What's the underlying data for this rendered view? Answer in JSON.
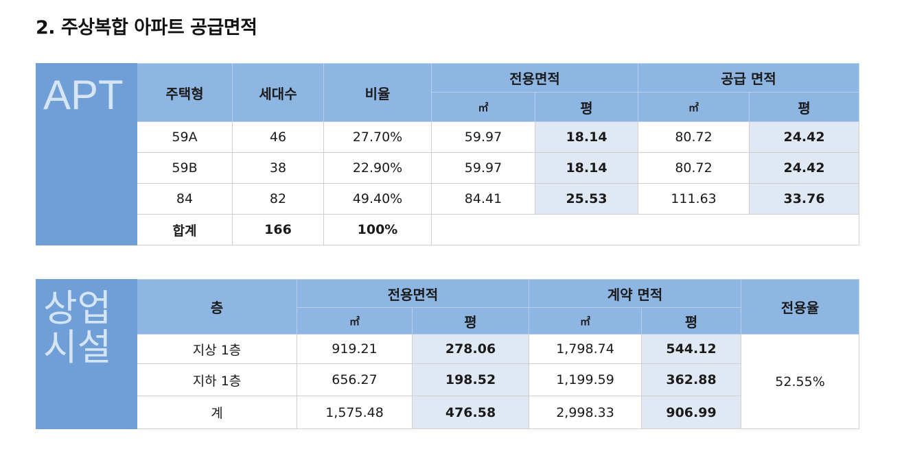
{
  "title": "2. 주상복합 아파트 공급면적",
  "apt": {
    "side_label": "APT",
    "headers": {
      "type": "주택형",
      "units": "세대수",
      "ratio": "비율",
      "exclusive": "전용면적",
      "supply": "공급 면적",
      "sqm": "㎡",
      "pyeong": "평"
    },
    "rows": [
      {
        "type": "59A",
        "units": "46",
        "ratio": "27.70%",
        "ex_sqm": "59.97",
        "ex_py": "18.14",
        "sup_sqm": "80.72",
        "sup_py": "24.42"
      },
      {
        "type": "59B",
        "units": "38",
        "ratio": "22.90%",
        "ex_sqm": "59.97",
        "ex_py": "18.14",
        "sup_sqm": "80.72",
        "sup_py": "24.42"
      },
      {
        "type": "84",
        "units": "82",
        "ratio": "49.40%",
        "ex_sqm": "84.41",
        "ex_py": "25.53",
        "sup_sqm": "111.63",
        "sup_py": "33.76"
      }
    ],
    "total": {
      "label": "합계",
      "units": "166",
      "ratio": "100%"
    }
  },
  "commercial": {
    "side_label_line1": "상업",
    "side_label_line2": "시설",
    "headers": {
      "floor": "층",
      "exclusive": "전용면적",
      "contract": "계약 면적",
      "rate": "전용율",
      "sqm": "㎡",
      "pyeong": "평"
    },
    "rows": [
      {
        "floor": "지상 1층",
        "ex_sqm": "919.21",
        "ex_py": "278.06",
        "ct_sqm": "1,798.74",
        "ct_py": "544.12"
      },
      {
        "floor": "지하 1층",
        "ex_sqm": "656.27",
        "ex_py": "198.52",
        "ct_sqm": "1,199.59",
        "ct_py": "362.88"
      },
      {
        "floor": "계",
        "ex_sqm": "1,575.48",
        "ex_py": "476.58",
        "ct_sqm": "2,998.33",
        "ct_py": "906.99"
      }
    ],
    "rate_value": "52.55%"
  }
}
